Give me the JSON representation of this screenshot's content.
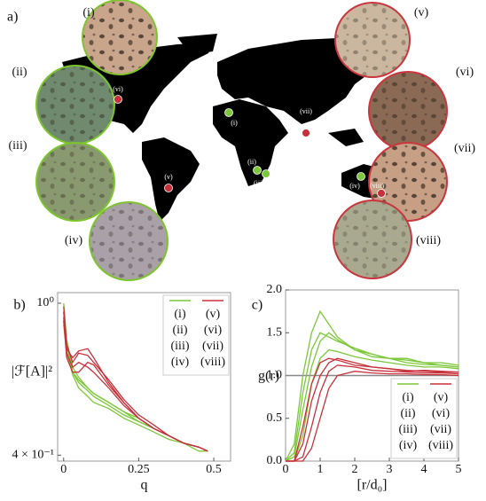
{
  "panel_a": {
    "label": "a)",
    "insets": [
      {
        "label": "(i)"
      },
      {
        "label": "(ii)"
      },
      {
        "label": "(iii)"
      },
      {
        "label": "(iv)"
      },
      {
        "label": "(v)"
      },
      {
        "label": "(vi)"
      },
      {
        "label": "(vii)"
      },
      {
        "label": "(viii)"
      }
    ],
    "markers": [
      {
        "label": "(vi)"
      },
      {
        "label": "(i)"
      },
      {
        "label": "(vii)"
      },
      {
        "label": "(ii)"
      },
      {
        "label": "(iii)"
      },
      {
        "label": "(v)"
      },
      {
        "label": "(iv)"
      },
      {
        "label": "(viii)"
      }
    ]
  },
  "chart_data": [
    {
      "type": "line",
      "panel": "b)",
      "ylabel": "|ℱ[A]|²",
      "xlabel": "q",
      "ylog": true,
      "legend": "upper right",
      "xlim": [
        -0.02,
        0.556
      ],
      "xticks": [
        0,
        0.25,
        0.5
      ],
      "ylim": [
        0.386,
        1.066
      ],
      "yticks": [
        {
          "value": 1,
          "label": "10⁰"
        },
        {
          "value": 0.4,
          "label": "4 × 10⁻¹"
        }
      ],
      "x": [
        0,
        0.01,
        0.03,
        0.05,
        0.08,
        0.1,
        0.15,
        0.2,
        0.25,
        0.3,
        0.35,
        0.4,
        0.45,
        0.48
      ],
      "series": [
        {
          "name": "(i)",
          "color": "#7cc83a",
          "values": [
            1.0,
            0.8,
            0.68,
            0.64,
            0.6,
            0.58,
            0.55,
            0.52,
            0.5,
            0.47,
            0.45,
            0.43,
            0.42,
            0.41
          ]
        },
        {
          "name": "(ii)",
          "color": "#7cc83a",
          "values": [
            0.95,
            0.78,
            0.66,
            0.62,
            0.59,
            0.57,
            0.54,
            0.51,
            0.49,
            0.47,
            0.45,
            0.43,
            0.42,
            0.41
          ]
        },
        {
          "name": "(iii)",
          "color": "#7cc83a",
          "values": [
            0.9,
            0.75,
            0.65,
            0.6,
            0.57,
            0.55,
            0.53,
            0.5,
            0.48,
            0.46,
            0.44,
            0.43,
            0.42,
            0.41
          ]
        },
        {
          "name": "(iv)",
          "color": "#7cc83a",
          "values": [
            0.88,
            0.74,
            0.66,
            0.63,
            0.6,
            0.58,
            0.55,
            0.52,
            0.49,
            0.47,
            0.45,
            0.43,
            0.41,
            0.41
          ]
        },
        {
          "name": "(v)",
          "color": "#c8303a",
          "values": [
            0.98,
            0.78,
            0.7,
            0.74,
            0.73,
            0.7,
            0.63,
            0.56,
            0.51,
            0.48,
            0.45,
            0.43,
            0.42,
            0.41
          ]
        },
        {
          "name": "(vi)",
          "color": "#c8303a",
          "values": [
            0.95,
            0.76,
            0.72,
            0.75,
            0.76,
            0.72,
            0.62,
            0.55,
            0.5,
            0.47,
            0.45,
            0.43,
            0.42,
            0.41
          ]
        },
        {
          "name": "(vii)",
          "color": "#c8303a",
          "values": [
            0.92,
            0.74,
            0.68,
            0.7,
            0.68,
            0.66,
            0.6,
            0.54,
            0.5,
            0.47,
            0.45,
            0.43,
            0.42,
            0.41
          ]
        },
        {
          "name": "(viii)",
          "color": "#c8303a",
          "values": [
            0.9,
            0.72,
            0.66,
            0.66,
            0.7,
            0.69,
            0.61,
            0.55,
            0.5,
            0.47,
            0.45,
            0.43,
            0.42,
            0.41
          ]
        }
      ]
    },
    {
      "type": "line",
      "panel": "c)",
      "ylabel": "g(r)",
      "xlabel": "[r/d₀]",
      "ylog": false,
      "legend": "lower right",
      "hline": 1,
      "xlim": [
        0,
        5
      ],
      "xticks": [
        0,
        1,
        2,
        3,
        4,
        5
      ],
      "ylim": [
        0,
        2
      ],
      "yticks": [
        {
          "value": 0,
          "label": "0.0"
        },
        {
          "value": 0.5,
          "label": "0.5"
        },
        {
          "value": 1,
          "label": "1.0"
        },
        {
          "value": 1.5,
          "label": "1.5"
        },
        {
          "value": 2,
          "label": "2.0"
        }
      ],
      "x": [
        0,
        0.25,
        0.5,
        0.75,
        1,
        1.25,
        1.5,
        2,
        2.5,
        3,
        3.5,
        4,
        4.5,
        5
      ],
      "series": [
        {
          "name": "(i)",
          "color": "#7cc83a",
          "values": [
            0,
            0.2,
            1.0,
            1.5,
            1.75,
            1.6,
            1.45,
            1.3,
            1.25,
            1.2,
            1.18,
            1.15,
            1.12,
            1.1
          ]
        },
        {
          "name": "(ii)",
          "color": "#7cc83a",
          "values": [
            0,
            0.1,
            0.8,
            1.3,
            1.5,
            1.45,
            1.4,
            1.32,
            1.25,
            1.2,
            1.2,
            1.15,
            1.15,
            1.12
          ]
        },
        {
          "name": "(iii)",
          "color": "#7cc83a",
          "values": [
            0,
            0.05,
            0.6,
            1.1,
            1.4,
            1.5,
            1.42,
            1.3,
            1.22,
            1.2,
            1.15,
            1.13,
            1.12,
            1.1
          ]
        },
        {
          "name": "(iv)",
          "color": "#7cc83a",
          "values": [
            0,
            0,
            0.3,
            0.9,
            1.2,
            1.3,
            1.28,
            1.22,
            1.18,
            1.15,
            1.12,
            1.1,
            1.1,
            1.08
          ]
        },
        {
          "name": "(v)",
          "color": "#c8303a",
          "values": [
            0,
            0,
            0.4,
            0.9,
            1.15,
            1.2,
            1.18,
            1.12,
            1.1,
            1.08,
            1.05,
            1.06,
            1.05,
            1.04
          ]
        },
        {
          "name": "(vi)",
          "color": "#c8303a",
          "values": [
            0,
            0,
            0.2,
            0.7,
            1.0,
            1.15,
            1.2,
            1.15,
            1.1,
            1.08,
            1.06,
            1.05,
            1.04,
            1.04
          ]
        },
        {
          "name": "(vii)",
          "color": "#c8303a",
          "values": [
            0,
            0,
            0.05,
            0.4,
            0.8,
            1.05,
            1.12,
            1.1,
            1.06,
            1.05,
            1.04,
            1.03,
            1.03,
            1.02
          ]
        },
        {
          "name": "(viii)",
          "color": "#c8303a",
          "values": [
            0,
            0,
            0,
            0.15,
            0.5,
            0.85,
            1.0,
            1.05,
            1.03,
            1.02,
            1.02,
            1.01,
            1.01,
            1.0
          ]
        }
      ]
    }
  ]
}
